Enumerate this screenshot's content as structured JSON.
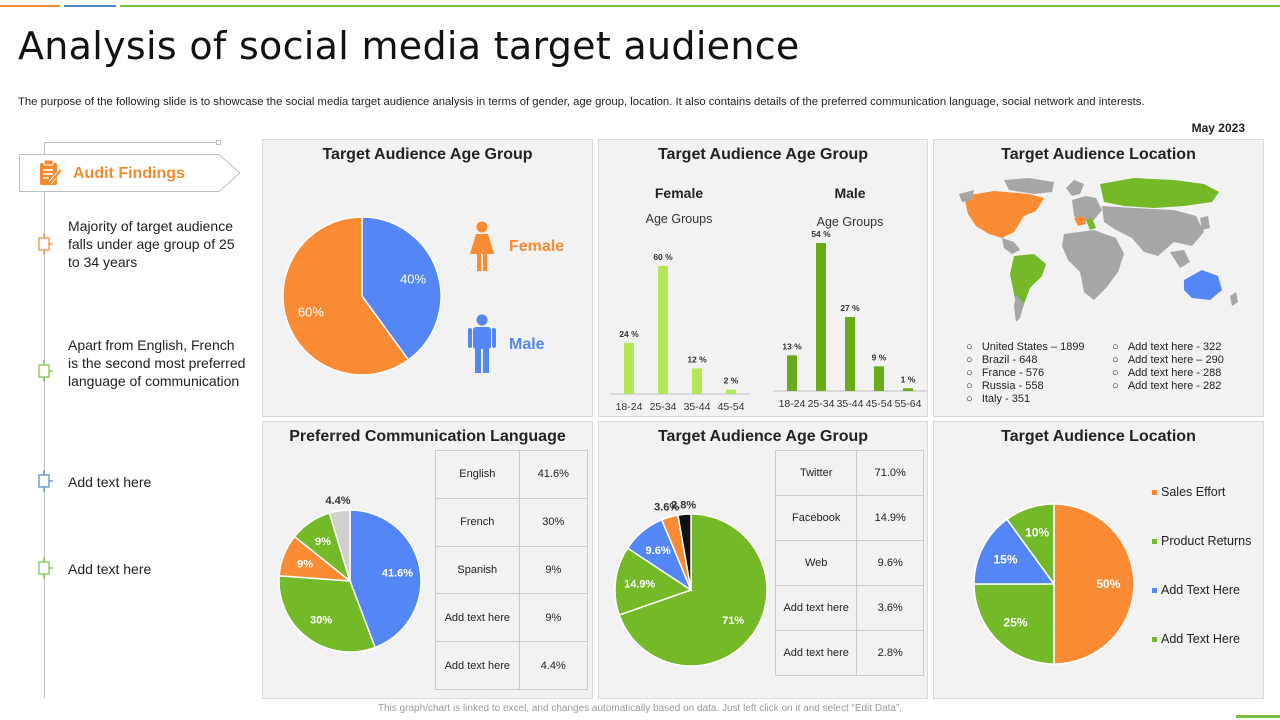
{
  "page": {
    "title": "Analysis of social media target audience",
    "description": "The purpose of the following slide is to showcase the social media target audience analysis in terms of gender, age group, location. It also contains details of the preferred communication language, social network and interests.",
    "date": "May 2023",
    "footnote": "This graph/chart is linked to excel, and changes automatically based on data. Just left click on it and select “Edit Data”."
  },
  "sidebar": {
    "header": "Audit Findings",
    "items": [
      {
        "text": "Majority of target audience falls under age group of 25 to 34 years",
        "color": "#f28b2f"
      },
      {
        "text": "Apart from English, French is the second most preferred language of communication",
        "color": "#7ac143"
      },
      {
        "text": "Add text here",
        "color": "#4f87c7"
      },
      {
        "text": "Add text here",
        "color": "#7ac143"
      }
    ]
  },
  "panels": {
    "gender": {
      "title": "Target Audience Age Group",
      "female_label": "Female",
      "male_label": "Male"
    },
    "age_bars": {
      "title": "Target Audience Age Group"
    },
    "location_map": {
      "title": "Target Audience Location",
      "legend_left": [
        "United States – 1899",
        "Brazil - 648",
        "France - 576",
        "Russia - 558",
        "Italy - 351"
      ],
      "legend_right": [
        "Add text here - 322",
        "Add text here – 290",
        "Add text here - 288",
        "Add text here - 282"
      ]
    },
    "language": {
      "title": "Preferred Communication Language"
    },
    "network": {
      "title": "Target Audience Age Group"
    },
    "location_pie": {
      "title": "Target Audience Location"
    }
  },
  "chart_data": [
    {
      "id": "gender_pie",
      "type": "pie",
      "title": "Target Audience Age Group",
      "labels": [
        "Male",
        "Female"
      ],
      "values": [
        40,
        60
      ],
      "value_labels": [
        "40%",
        "60%"
      ],
      "colors": [
        "#5487f5",
        "#f98b34"
      ]
    },
    {
      "id": "female_bars",
      "type": "bar",
      "title": "Female",
      "subtitle": "Age Groups",
      "categories": [
        "18-24",
        "25-34",
        "35-44",
        "45-54"
      ],
      "values": [
        24,
        60,
        12,
        2
      ],
      "value_labels": [
        "24 %",
        "60 %",
        "12 %",
        "2 %"
      ],
      "ylim": [
        0,
        60
      ],
      "color": "#b5e655"
    },
    {
      "id": "male_bars",
      "type": "bar",
      "title": "Male",
      "subtitle": "Age Groups",
      "categories": [
        "18-24",
        "25-34",
        "35-44",
        "45-54",
        "55-64"
      ],
      "values": [
        13,
        54,
        27,
        9,
        1
      ],
      "value_labels": [
        "13 %",
        "54 %",
        "27 %",
        "9 %",
        "1 %"
      ],
      "ylim": [
        0,
        54
      ],
      "color": "#6aab1c"
    },
    {
      "id": "language_pie",
      "type": "pie",
      "title": "Preferred Communication Language",
      "labels": [
        "English",
        "French",
        "Spanish",
        "Add text here",
        "Add text here"
      ],
      "values": [
        41.6,
        30,
        9,
        9,
        4.4
      ],
      "value_labels": [
        "41.6%",
        "30%",
        "9%",
        "9%",
        "4.4%"
      ],
      "slice_labels": [
        "41.6%",
        "30%",
        "9%",
        "9%",
        "4.4%"
      ],
      "colors": [
        "#5487f5",
        "#73b928",
        "#f98b34",
        "#73b928",
        "#d0d0d0"
      ]
    },
    {
      "id": "network_pie",
      "type": "pie",
      "title": "Target Audience Age Group",
      "labels": [
        "Twitter",
        "Facebook",
        "Web",
        "Add text here",
        "Add text here"
      ],
      "values": [
        71.0,
        14.9,
        9.6,
        3.6,
        2.8
      ],
      "value_labels": [
        "71.0%",
        "14.9%",
        "9.6%",
        "3.6%",
        "2.8%"
      ],
      "slice_labels": [
        "71%",
        "14.9%",
        "9.6%",
        "3.6%",
        "2.8%"
      ],
      "colors": [
        "#73b928",
        "#73b928",
        "#5487f5",
        "#f98b34",
        "#111111"
      ]
    },
    {
      "id": "location_pie",
      "type": "pie",
      "title": "Target Audience Location",
      "labels": [
        "Sales Effort",
        "Product Returns",
        "Add Text Here",
        "Add Text Here"
      ],
      "values": [
        50,
        25,
        15,
        10
      ],
      "value_labels": [
        "50%",
        "25%",
        "15%",
        "10%"
      ],
      "colors": [
        "#f98b34",
        "#73b928",
        "#5487f5",
        "#73b928"
      ]
    }
  ],
  "icons": {
    "female": "female-figure-icon",
    "male": "male-figure-icon",
    "audit": "clipboard-icon"
  },
  "colors": {
    "orange": "#f98b34",
    "blue": "#5487f5",
    "green": "#73b928",
    "panel_bg": "#f2f2f2"
  }
}
